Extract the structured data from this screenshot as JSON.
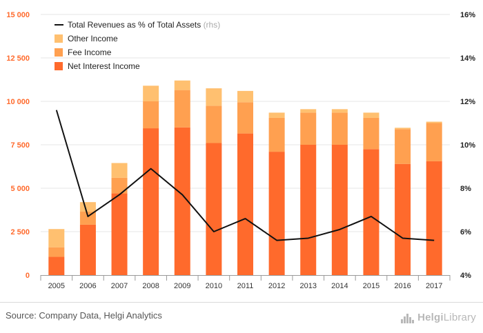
{
  "chart_data": {
    "type": "bar",
    "stacked": true,
    "categories": [
      "2005",
      "2006",
      "2007",
      "2008",
      "2009",
      "2010",
      "2011",
      "2012",
      "2013",
      "2014",
      "2015",
      "2016",
      "2017"
    ],
    "series": [
      {
        "name": "Net Interest Income",
        "color": "#ff6a2c",
        "values": [
          1050,
          2900,
          4700,
          8450,
          8500,
          7600,
          8150,
          7100,
          7500,
          7500,
          7250,
          6400,
          6550
        ]
      },
      {
        "name": "Fee Income",
        "color": "#ffa050",
        "values": [
          550,
          750,
          900,
          1550,
          2150,
          2150,
          1800,
          1950,
          1850,
          1850,
          1800,
          2000,
          2200
        ]
      },
      {
        "name": "Other Income",
        "color": "#ffc070",
        "values": [
          1050,
          550,
          850,
          900,
          550,
          1000,
          650,
          300,
          200,
          200,
          300,
          80,
          80
        ]
      }
    ],
    "line": {
      "name": "Total Revenues as % of Total Assets",
      "suffix": "(rhs)",
      "color": "#111111",
      "values": [
        11.6,
        6.7,
        7.7,
        8.9,
        7.7,
        6.0,
        6.6,
        5.6,
        5.7,
        6.1,
        6.7,
        5.7,
        5.6
      ]
    },
    "y_left": {
      "min": 0,
      "max": 15000,
      "ticks": [
        0,
        2500,
        5000,
        7500,
        10000,
        12500,
        15000
      ],
      "tick_labels": [
        "0",
        "2 500",
        "5 000",
        "7 500",
        "10 000",
        "12 500",
        "15 000"
      ],
      "label_color": "#ff6a2c"
    },
    "y_right": {
      "min": 4,
      "max": 16,
      "ticks": [
        4,
        6,
        8,
        10,
        12,
        14,
        16
      ],
      "tick_labels": [
        "4%",
        "6%",
        "8%",
        "10%",
        "12%",
        "14%",
        "16%"
      ]
    },
    "legend_order": [
      "line",
      "Other Income",
      "Fee Income",
      "Net Interest Income"
    ],
    "legend_position": "top-left",
    "grid": true
  },
  "source": "Source: Company Data, Helgi Analytics",
  "logo": {
    "bold": "Helgi",
    "light": "Library"
  }
}
